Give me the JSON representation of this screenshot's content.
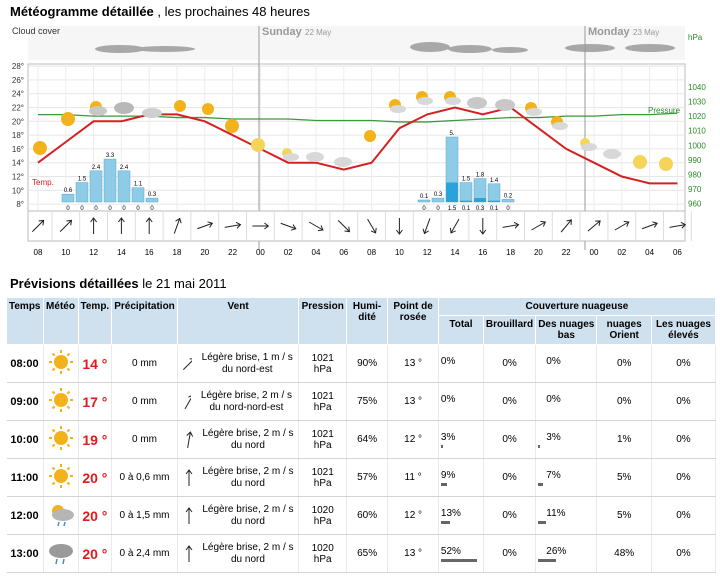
{
  "header": {
    "title_bold": "Météogramme détaillée",
    "title_rest": " , les prochaines 48 heures",
    "cloud_cover": "Cloud cover",
    "sunday": "Sunday",
    "sunday_date": "22 May",
    "monday": "Monday",
    "monday_date": "23 May",
    "hpa": "hPa",
    "temp_label": "Temp.",
    "pressure_label": "Pressure"
  },
  "chart_data": {
    "type": "line",
    "hours": [
      "08",
      "10",
      "12",
      "14",
      "16",
      "18",
      "20",
      "22",
      "00",
      "02",
      "04",
      "06",
      "08",
      "10",
      "12",
      "14",
      "16",
      "18",
      "20",
      "22",
      "00",
      "02",
      "04",
      "06"
    ],
    "temp_ticks": [
      "28°",
      "26°",
      "24°",
      "22°",
      "20°",
      "18°",
      "16°",
      "14°",
      "12°",
      "10°",
      "8°"
    ],
    "pressure_ticks": [
      "1040",
      "1030",
      "1020",
      "1010",
      "1000",
      "990",
      "980",
      "970",
      "960"
    ],
    "temperature": [
      14,
      17,
      20,
      20,
      21,
      21,
      20,
      18,
      16,
      14,
      14,
      13,
      14,
      19,
      21,
      22,
      21,
      22,
      19,
      16,
      14,
      12,
      11,
      11
    ],
    "pressure": [
      1021,
      1021,
      1020,
      1020,
      1020,
      1019,
      1019,
      1018,
      1018,
      1018,
      1017,
      1017,
      1017,
      1016,
      1016,
      1017,
      1018,
      1019,
      1019,
      1020,
      1020,
      1021,
      1021,
      1022
    ],
    "precip_bars": [
      {
        "hour": "10",
        "max": 0.6,
        "min": 0
      },
      {
        "hour": "11",
        "max": 1.5,
        "min": 0
      },
      {
        "hour": "12",
        "max": 2.4,
        "min": 0
      },
      {
        "hour": "13",
        "max": 3.3,
        "min": 0
      },
      {
        "hour": "14",
        "max": 2.4,
        "min": 0
      },
      {
        "hour": "15",
        "max": 1.1,
        "min": 0
      },
      {
        "hour": "16",
        "max": 0.3,
        "min": 0
      },
      {
        "hour": "12s",
        "max": 0.1,
        "min": 0
      },
      {
        "hour": "13s",
        "max": 0.3,
        "min": 0
      },
      {
        "hour": "14s",
        "max": 5.0,
        "min": 1.5
      },
      {
        "hour": "15s",
        "max": 1.5,
        "min": 0.1
      },
      {
        "hour": "16s",
        "max": 1.8,
        "min": 0.3
      },
      {
        "hour": "17s",
        "max": 1.4,
        "min": 0.1
      },
      {
        "hour": "18s",
        "max": 0.2,
        "min": 0
      }
    ],
    "precip_labels_top": [
      "0.6",
      "1.5",
      "2.4",
      "3.3",
      "2.4",
      "1.1",
      "0.3",
      "0.1",
      "0.3",
      "5.",
      "1.5",
      "1.8",
      "1.4",
      "0.2"
    ],
    "precip_labels_bottom": [
      "0",
      "0",
      "0",
      "0",
      "0",
      "0",
      "0",
      "0",
      "0",
      "1.5",
      "0.1",
      "0.3",
      "0.1",
      "0"
    ]
  },
  "section2": {
    "title_bold": "Prévisions détaillées",
    "title_rest": " le 21 mai 2011"
  },
  "table": {
    "headers": {
      "time": "Temps",
      "weather": "Météo",
      "temp": "Temp.",
      "precip": "Précipitation",
      "wind": "Vent",
      "pressure": "Pression",
      "humidity": "Humi-dité",
      "dew": "Point de rosée",
      "cloud": "Couverture nuageuse",
      "total": "Total",
      "fog": "Brouillard",
      "low": "Des nuages bas",
      "mid": "nuages Orient",
      "high": "Les nuages élevés"
    },
    "rows": [
      {
        "time": "08:00",
        "icon": "sun-icon",
        "temp": "14 °",
        "precip": "0 mm",
        "wind": "Légère brise, 1 m / s du nord-est",
        "pressure": "1021 hPa",
        "humidity": "90%",
        "dew": "13 °",
        "total": "0%",
        "fog": "0%",
        "low": "0%",
        "mid": "0%",
        "high": "0%",
        "bar_total": 0,
        "bar_low": 0
      },
      {
        "time": "09:00",
        "icon": "sun-icon",
        "temp": "17 °",
        "precip": "0 mm",
        "wind": "Légère brise, 2 m / s du nord-nord-est",
        "pressure": "1021 hPa",
        "humidity": "75%",
        "dew": "13 °",
        "total": "0%",
        "fog": "0%",
        "low": "0%",
        "mid": "0%",
        "high": "0%",
        "bar_total": 0,
        "bar_low": 0
      },
      {
        "time": "10:00",
        "icon": "sun-icon",
        "temp": "19 °",
        "precip": "0 mm",
        "wind": "Légère brise, 2 m / s du nord",
        "pressure": "1021 hPa",
        "humidity": "64%",
        "dew": "12 °",
        "total": "3%",
        "fog": "0%",
        "low": "3%",
        "mid": "1%",
        "high": "0%",
        "bar_total": 3,
        "bar_low": 3
      },
      {
        "time": "11:00",
        "icon": "sun-icon",
        "temp": "20 °",
        "precip": "0 à 0,6 mm",
        "wind": "Légère brise, 2 m / s du nord",
        "pressure": "1021 hPa",
        "humidity": "57%",
        "dew": "11 °",
        "total": "9%",
        "fog": "0%",
        "low": "7%",
        "mid": "5%",
        "high": "0%",
        "bar_total": 9,
        "bar_low": 7
      },
      {
        "time": "12:00",
        "icon": "sun-cloud-rain-icon",
        "temp": "20 °",
        "precip": "0 à 1,5 mm",
        "wind": "Légère brise, 2 m / s du nord",
        "pressure": "1020 hPa",
        "humidity": "60%",
        "dew": "12 °",
        "total": "13%",
        "fog": "0%",
        "low": "11%",
        "mid": "5%",
        "high": "0%",
        "bar_total": 13,
        "bar_low": 11
      },
      {
        "time": "13:00",
        "icon": "cloud-rain-icon",
        "temp": "20 °",
        "precip": "0 à 2,4 mm",
        "wind": "Légère brise, 2 m / s du nord",
        "pressure": "1020 hPa",
        "humidity": "65%",
        "dew": "13 °",
        "total": "52%",
        "fog": "0%",
        "low": "26%",
        "mid": "48%",
        "high": "0%",
        "bar_total": 52,
        "bar_low": 26
      }
    ]
  }
}
